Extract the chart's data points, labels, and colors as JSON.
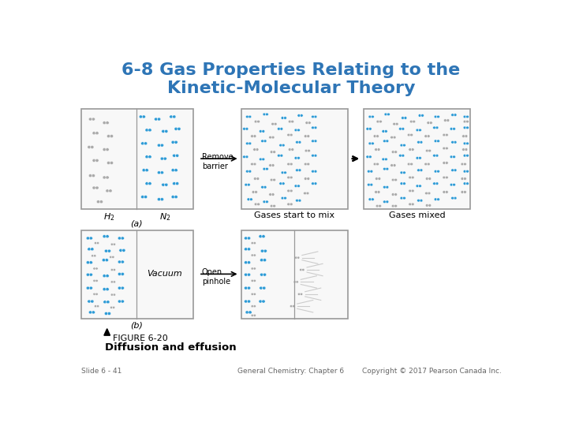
{
  "title_line1": "6-8 Gas Properties Relating to the",
  "title_line2": "Kinetic-Molecular Theory",
  "title_color": "#2E75B6",
  "bg_color": "#FFFFFF",
  "blue_color": "#2E9BD6",
  "gray_color": "#AAAAAA",
  "box_edge_color": "#999999",
  "box_face_color": "#F8F8F8",
  "figure_label": "FIGURE 6-20",
  "figure_caption": "Diffusion and effusion",
  "footer_left": "Slide 6 - 41",
  "footer_center": "General Chemistry: Chapter 6",
  "footer_right": "Copyright © 2017 Pearson Canada Inc.",
  "label_a": "(a)",
  "label_b": "(b)",
  "label_gases_start": "Gases start to mix",
  "label_gases_mixed": "Gases mixed",
  "label_vacuum": "Vacuum",
  "label_remove_barrier": "Remove\nbarrier",
  "label_open_pinhole": "Open\npinhole",
  "arrow_color": "#000000"
}
